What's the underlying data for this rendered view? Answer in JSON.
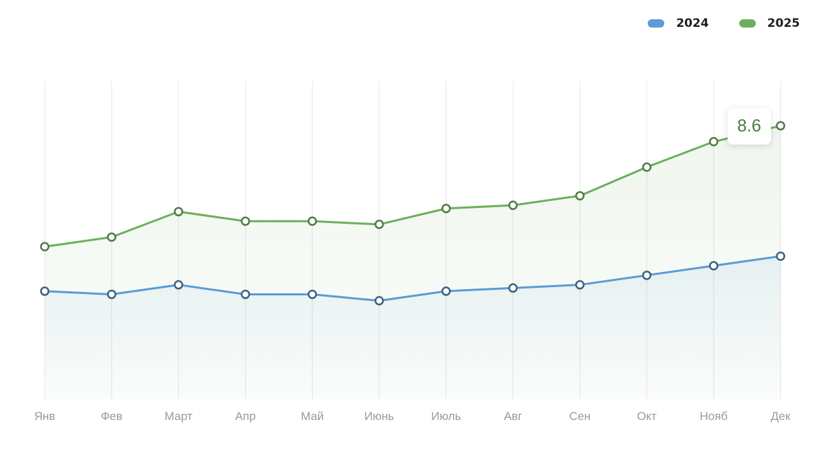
{
  "chart_data": {
    "type": "area",
    "categories": [
      "Янв",
      "Фев",
      "Март",
      "Апр",
      "Май",
      "Июнь",
      "Июль",
      "Авг",
      "Сен",
      "Окт",
      "Нояб",
      "Дек"
    ],
    "series": [
      {
        "name": "2024",
        "color": "#5b9bd5",
        "marker_color": "#3d5f82",
        "values": [
          3.4,
          3.3,
          3.6,
          3.3,
          3.3,
          3.1,
          3.4,
          3.5,
          3.6,
          3.9,
          4.2,
          4.5
        ]
      },
      {
        "name": "2025",
        "color": "#6aaf5c",
        "marker_color": "#4f7a44",
        "values": [
          4.8,
          5.1,
          5.9,
          5.6,
          5.6,
          5.5,
          6.0,
          6.1,
          6.4,
          7.3,
          8.1,
          8.6
        ]
      }
    ],
    "ylim": [
      0,
      10
    ],
    "grid": "vertical",
    "legend": "top-right",
    "tooltip": {
      "series": "2025",
      "category": "Дек",
      "value": "8.6"
    }
  }
}
